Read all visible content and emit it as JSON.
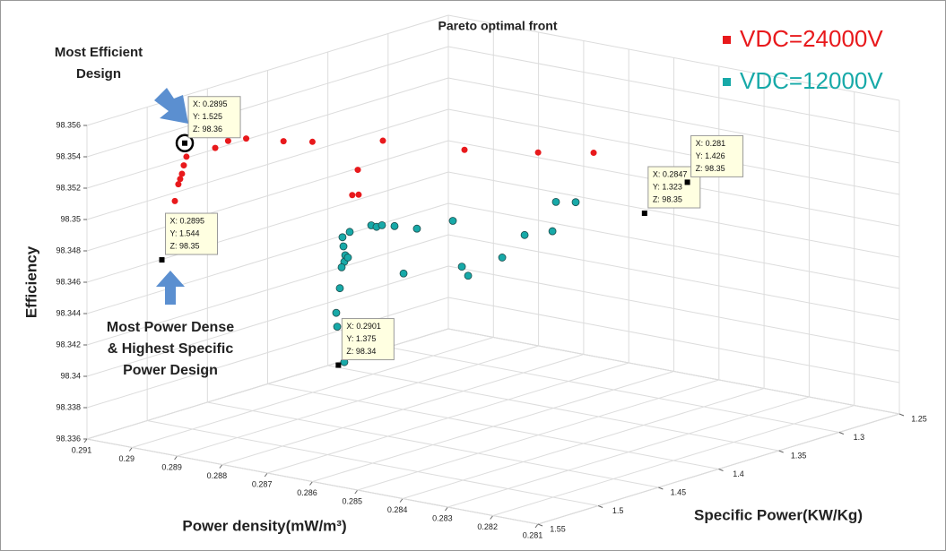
{
  "chart_data": {
    "type": "scatter3d",
    "title": "Pareto optimal front",
    "xlabel": "Power density(mW/m³)",
    "ylabel": "Specific Power(KW/Kg)",
    "zlabel": "Efficiency",
    "xlim": [
      0.291,
      0.281
    ],
    "ylim": [
      1.55,
      1.25
    ],
    "zlim": [
      98.336,
      98.356
    ],
    "xticks": [
      0.291,
      0.29,
      0.289,
      0.288,
      0.287,
      0.286,
      0.285,
      0.284,
      0.283,
      0.282,
      0.281
    ],
    "yticks": [
      1.55,
      1.5,
      1.45,
      1.4,
      1.35,
      1.3,
      1.25
    ],
    "zticks": [
      98.336,
      98.338,
      98.34,
      98.342,
      98.344,
      98.346,
      98.348,
      98.35,
      98.352,
      98.354,
      98.356
    ],
    "grid": true,
    "legend": "upper right",
    "series": [
      {
        "name": "VDC=24000V",
        "color": "#e8191c",
        "x": [
          0.2895,
          0.2895,
          0.2895,
          0.2895,
          0.2895,
          0.2895,
          0.2895,
          0.2895,
          0.2895,
          0.2895,
          0.2895,
          0.2895,
          0.2895,
          0.286,
          0.286,
          0.286,
          0.286,
          0.286,
          0.286
        ],
        "y": [
          1.5236,
          1.5258,
          1.5273,
          1.5288,
          1.5303,
          1.5332,
          1.537,
          1.4997,
          1.489,
          1.474,
          1.443,
          1.419,
          1.3605,
          1.4238,
          1.3627,
          1.3166,
          1.5124,
          1.5117,
          1.517
        ],
        "z": [
          98.3542,
          98.3537,
          98.3532,
          98.3529,
          98.3526,
          98.3516,
          98.3486,
          98.3542,
          98.3544,
          98.3542,
          98.3533,
          98.3527,
          98.3514,
          98.3542,
          98.3526,
          98.3515,
          98.355,
          98.3534,
          98.3535
        ]
      },
      {
        "name": "VDC=12000V",
        "color": "#17a9a8",
        "x": [
          0.286,
          0.286,
          0.286,
          0.286,
          0.286,
          0.286,
          0.286,
          0.286,
          0.286,
          0.286,
          0.286,
          0.286,
          0.286,
          0.286,
          0.286,
          0.286,
          0.286,
          0.286,
          0.286,
          0.286,
          0.286,
          0.286,
          0.286,
          0.286,
          0.286
        ],
        "y": [
          1.5251,
          1.5243,
          1.5228,
          1.5236,
          1.5258,
          1.5206,
          1.5273,
          1.5303,
          1.5295,
          1.5236,
          1.5191,
          1.5012,
          1.4968,
          1.4923,
          1.4819,
          1.4633,
          1.4744,
          1.4335,
          1.426,
          1.4208,
          1.3925,
          1.3739,
          1.3508,
          1.3479,
          1.3315
        ],
        "z": [
          98.351,
          98.3504,
          98.3498,
          98.3494,
          98.3491,
          98.3496,
          98.3478,
          98.3463,
          98.3454,
          98.343,
          98.3512,
          98.3512,
          98.351,
          98.351,
          98.3507,
          98.3501,
          98.3475,
          98.3499,
          98.3468,
          98.3461,
          98.3466,
          98.3476,
          98.3473,
          98.3491,
          98.3487
        ]
      }
    ],
    "datatips": [
      {
        "x": 0.2895,
        "y": 1.525,
        "z": 98.3551,
        "x_label": "X: 0.2895",
        "y_label": "Y: 1.525",
        "z_label": "Z: 98.36"
      },
      {
        "x": 0.2895,
        "y": 1.544,
        "z": 98.3481,
        "x_label": "X: 0.2895",
        "y_label": "Y: 1.544",
        "z_label": "Z: 98.35"
      },
      {
        "x": 0.2901,
        "y": 1.375,
        "z": 98.3371,
        "x_label": "X: 0.2901",
        "y_label": "Y: 1.375",
        "z_label": "Z: 98.34"
      },
      {
        "x": 0.2847,
        "y": 1.323,
        "z": 98.3485,
        "x_label": "X: 0.2847",
        "y_label": "Y: 1.323",
        "z_label": "Z: 98.35"
      },
      {
        "x": 0.281,
        "y": 1.426,
        "z": 98.3549,
        "x_label": "X: 0.281",
        "y_label": "Y: 1.426",
        "z_label": "Z: 98.35"
      }
    ],
    "annotations": [
      {
        "lines": [
          "Most  Efficient",
          "Design"
        ]
      },
      {
        "lines": [
          "Most  Power Dense",
          "& Highest Specific",
          "Power Design"
        ]
      }
    ]
  }
}
